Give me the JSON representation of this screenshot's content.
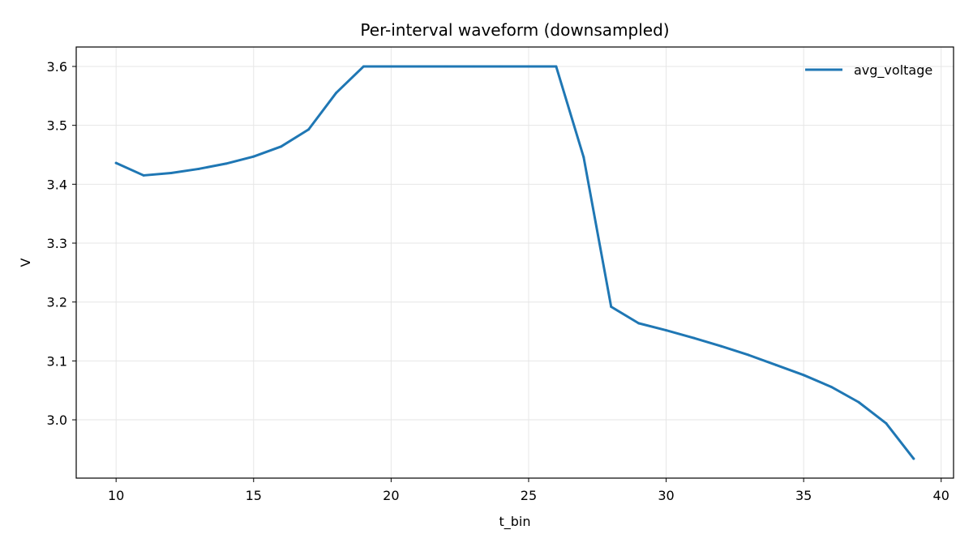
{
  "chart_data": {
    "type": "line",
    "title": "Per-interval waveform (downsampled)",
    "xlabel": "t_bin",
    "ylabel": "V",
    "xlim": [
      8.55,
      40.45
    ],
    "ylim": [
      2.901,
      3.633
    ],
    "x_ticks": [
      10,
      15,
      20,
      25,
      30,
      35,
      40
    ],
    "x_tick_labels": [
      "10",
      "15",
      "20",
      "25",
      "30",
      "35",
      "40"
    ],
    "y_ticks": [
      3.0,
      3.1,
      3.2,
      3.3,
      3.4,
      3.5,
      3.6
    ],
    "y_tick_labels": [
      "3.0",
      "3.1",
      "3.2",
      "3.3",
      "3.4",
      "3.5",
      "3.6"
    ],
    "grid": true,
    "legend_position": "top-right",
    "series": [
      {
        "name": "avg_voltage",
        "color": "#1f77b4",
        "x": [
          10,
          11,
          12,
          13,
          14,
          15,
          16,
          17,
          18,
          19,
          20,
          21,
          22,
          23,
          24,
          25,
          26,
          27,
          28,
          29,
          30,
          31,
          32,
          33,
          34,
          35,
          36,
          37,
          38,
          39
        ],
        "y": [
          3.436,
          3.415,
          3.419,
          3.426,
          3.435,
          3.447,
          3.464,
          3.493,
          3.555,
          3.6,
          3.6,
          3.6,
          3.6,
          3.6,
          3.6,
          3.6,
          3.6,
          3.446,
          3.192,
          3.164,
          3.152,
          3.139,
          3.125,
          3.11,
          3.093,
          3.076,
          3.056,
          3.03,
          2.994,
          2.934
        ]
      }
    ]
  }
}
